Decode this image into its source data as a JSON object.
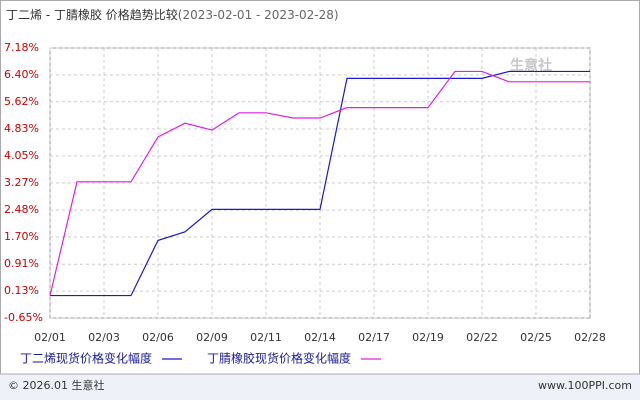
{
  "chart_data": {
    "type": "line",
    "title": "丁二烯 - 丁腈橡胶 价格趋势比较",
    "subtitle": "(2023-02-01 - 2023-02-28)",
    "categories": [
      "02/01",
      null,
      "02/03",
      null,
      "02/06",
      null,
      "02/09",
      null,
      "02/11",
      null,
      "02/14",
      null,
      "02/17",
      null,
      "02/19",
      null,
      "02/22",
      null,
      "02/25",
      null,
      "02/28"
    ],
    "series": [
      {
        "name": "丁二烯现货价格变化幅度",
        "color": "#1a1acc",
        "values": [
          0,
          0,
          0,
          0,
          1.6,
          1.85,
          2.5,
          2.5,
          2.5,
          2.5,
          2.5,
          6.3,
          6.3,
          6.3,
          6.3,
          6.3,
          6.3,
          6.5,
          6.5,
          6.5,
          6.5
        ]
      },
      {
        "name": "丁腈橡胶现货价格变化幅度",
        "color": "#e020e0",
        "values": [
          0,
          3.3,
          3.3,
          3.3,
          4.6,
          5.0,
          4.8,
          5.3,
          5.3,
          5.15,
          5.15,
          5.45,
          5.45,
          5.45,
          5.45,
          6.5,
          6.5,
          6.2,
          6.2,
          6.2,
          6.2
        ]
      }
    ],
    "ylim": [
      -0.65,
      7.18
    ],
    "yticks": [
      {
        "value": -0.65,
        "label": "-0.65%"
      },
      {
        "value": 0.13,
        "label": "0.13%"
      },
      {
        "value": 0.91,
        "label": "0.91%"
      },
      {
        "value": 1.7,
        "label": "1.70%"
      },
      {
        "value": 2.48,
        "label": "2.48%"
      },
      {
        "value": 3.27,
        "label": "3.27%"
      },
      {
        "value": 4.05,
        "label": "4.05%"
      },
      {
        "value": 4.83,
        "label": "4.83%"
      },
      {
        "value": 5.62,
        "label": "5.62%"
      },
      {
        "value": 6.4,
        "label": "6.40%"
      },
      {
        "value": 7.18,
        "label": "7.18%"
      }
    ],
    "grid": true,
    "watermark": "生意社",
    "footer_left": "© 2026.01 生意社",
    "footer_right": "www.100PPI.com"
  }
}
